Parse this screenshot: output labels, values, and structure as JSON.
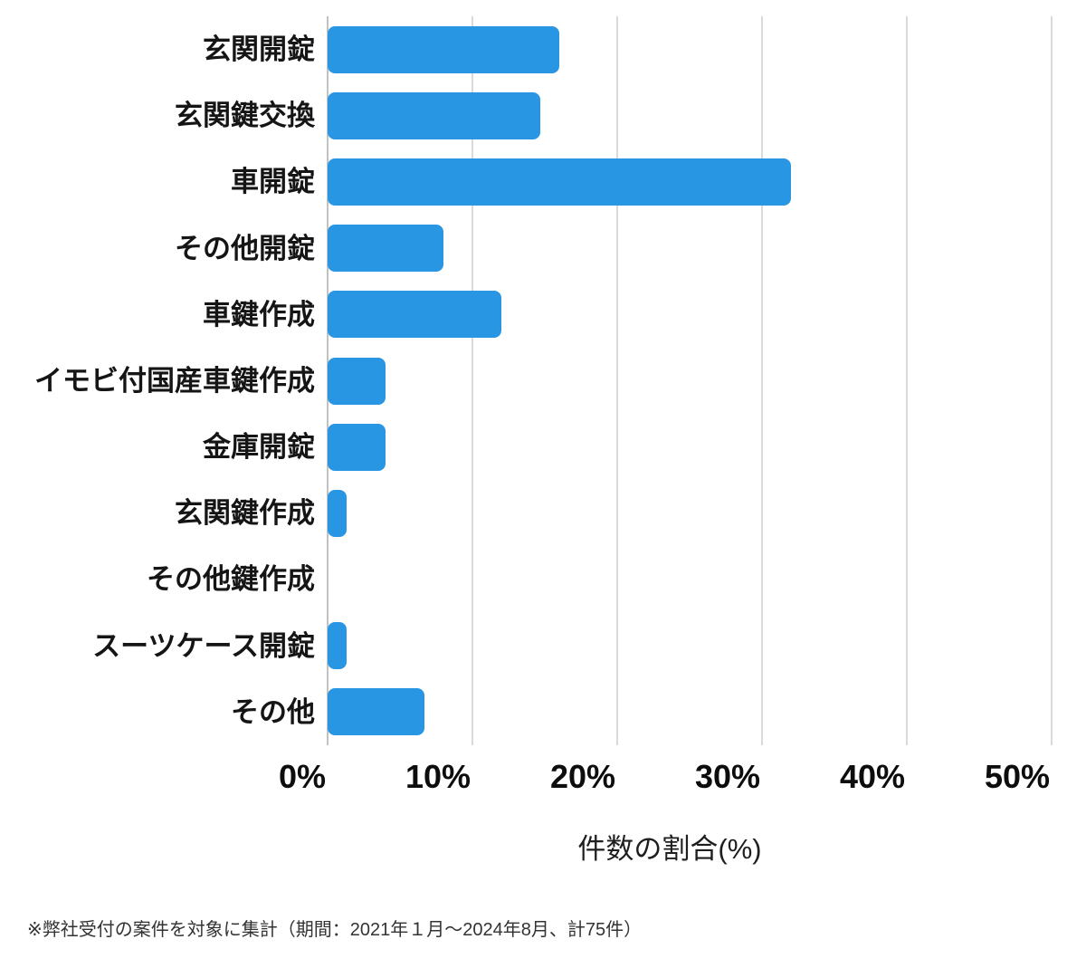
{
  "chart_data": {
    "type": "bar",
    "orientation": "horizontal",
    "title": "",
    "categories": [
      "玄関開錠",
      "玄関鍵交換",
      "車開錠",
      "その他開錠",
      "車鍵作成",
      "イモビ付国産車鍵作成",
      "金庫開錠",
      "玄関鍵作成",
      "その他鍵作成",
      "スーツケース開錠",
      "その他"
    ],
    "values": [
      16,
      14.7,
      32,
      8,
      12,
      4,
      4,
      1.3,
      0,
      1.3,
      6.7
    ],
    "unit": "%",
    "xlabel": "件数の割合(%)",
    "ylabel": "",
    "x_ticks": [
      "0%",
      "10%",
      "20%",
      "30%",
      "40%",
      "50%"
    ],
    "x_tick_values": [
      0,
      10,
      20,
      30,
      40,
      50
    ],
    "xlim": [
      0,
      50
    ],
    "grid": true,
    "legend": false,
    "bar_color": "#2896e3",
    "gridline_color": "#dadada",
    "axisline_color": "#c2c2c2"
  },
  "footnote": "※弊社受付の案件を対象に集計（期間：2021年１月～2024年8月、計75件）"
}
